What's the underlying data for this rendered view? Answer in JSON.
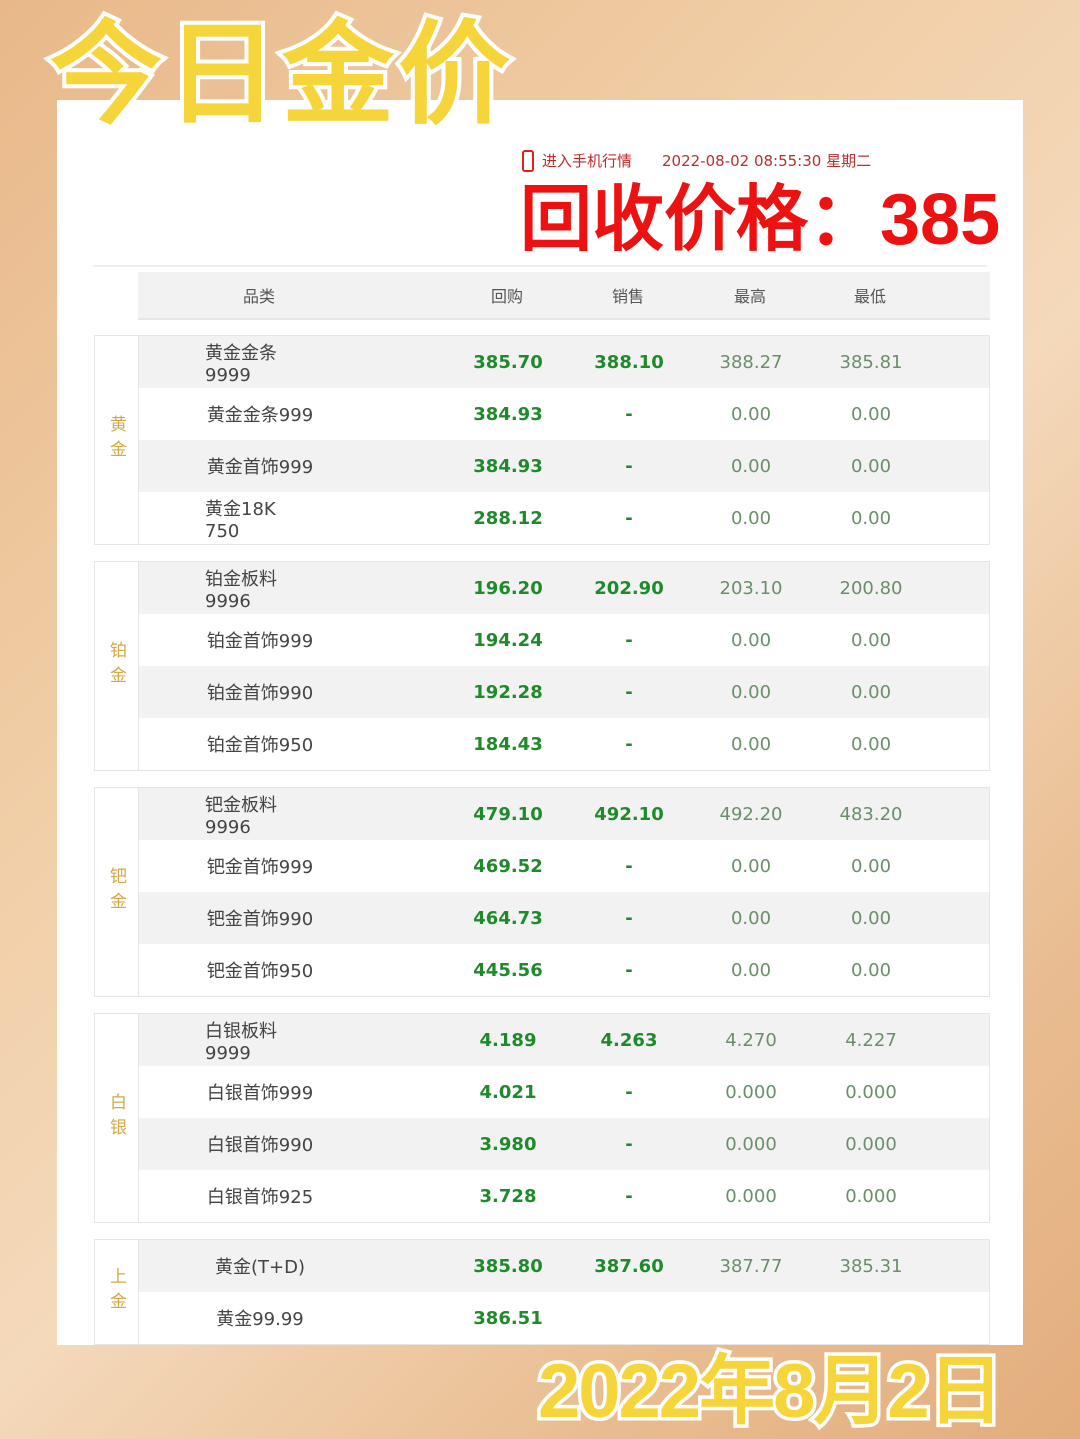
{
  "overlay": {
    "title": "今日金价",
    "price_label": "回收价格：385",
    "date": "2022年8月2日"
  },
  "topbar": {
    "mobile_link": "进入手机行情",
    "datetime": "2022-08-02 08:55:30 星期二"
  },
  "header": [
    "品类",
    "回购",
    "销售",
    "最高",
    "最低"
  ],
  "groups": [
    {
      "category": "黄金",
      "rows": [
        [
          "黄金金条9999",
          "385.70",
          "388.10",
          "388.27",
          "385.81"
        ],
        [
          "黄金金条999",
          "384.93",
          "-",
          "0.00",
          "0.00"
        ],
        [
          "黄金首饰999",
          "384.93",
          "-",
          "0.00",
          "0.00"
        ],
        [
          "黄金18K 750",
          "288.12",
          "-",
          "0.00",
          "0.00"
        ]
      ]
    },
    {
      "category": "铂金",
      "rows": [
        [
          "铂金板料9996",
          "196.20",
          "202.90",
          "203.10",
          "200.80"
        ],
        [
          "铂金首饰999",
          "194.24",
          "-",
          "0.00",
          "0.00"
        ],
        [
          "铂金首饰990",
          "192.28",
          "-",
          "0.00",
          "0.00"
        ],
        [
          "铂金首饰950",
          "184.43",
          "-",
          "0.00",
          "0.00"
        ]
      ]
    },
    {
      "category": "钯金",
      "rows": [
        [
          "钯金板料9996",
          "479.10",
          "492.10",
          "492.20",
          "483.20"
        ],
        [
          "钯金首饰999",
          "469.52",
          "-",
          "0.00",
          "0.00"
        ],
        [
          "钯金首饰990",
          "464.73",
          "-",
          "0.00",
          "0.00"
        ],
        [
          "钯金首饰950",
          "445.56",
          "-",
          "0.00",
          "0.00"
        ]
      ]
    },
    {
      "category": "白银",
      "rows": [
        [
          "白银板料9999",
          "4.189",
          "4.263",
          "4.270",
          "4.227"
        ],
        [
          "白银首饰999",
          "4.021",
          "-",
          "0.000",
          "0.000"
        ],
        [
          "白银首饰990",
          "3.980",
          "-",
          "0.000",
          "0.000"
        ],
        [
          "白银首饰925",
          "3.728",
          "-",
          "0.000",
          "0.000"
        ]
      ]
    },
    {
      "category": "上金",
      "rows": [
        [
          "黄金(T+D)",
          "385.80",
          "387.60",
          "387.77",
          "385.31"
        ],
        [
          "黄金99.99",
          "386.51",
          "",
          "",
          ""
        ]
      ]
    }
  ],
  "colors": {
    "buy": "#1f8a2a",
    "category": "#d4a845",
    "price_overlay": "#ee1111",
    "title": "#f5d53a"
  }
}
